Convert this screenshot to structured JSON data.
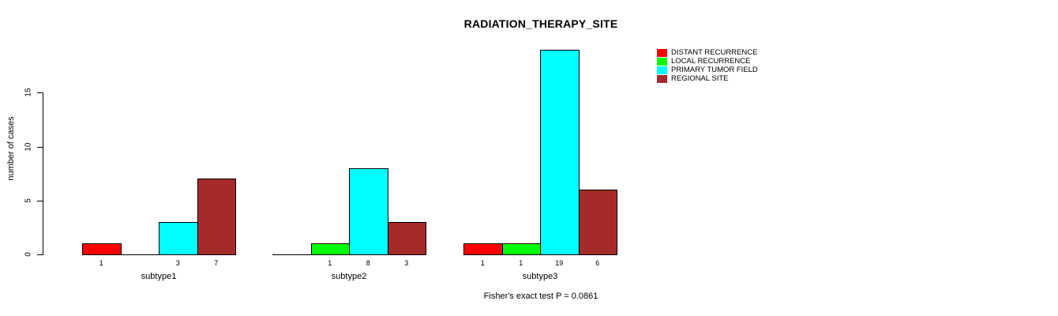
{
  "header": {
    "title": "RADIATION_THERAPY_SITE"
  },
  "footer": {
    "annotation": "Fisher's exact test P = 0.0861"
  },
  "chart_data": {
    "type": "bar",
    "title": "RADIATION_THERAPY_SITE",
    "xlabel": "",
    "ylabel": "number of cases",
    "categories": [
      "subtype1",
      "subtype2",
      "subtype3"
    ],
    "series": [
      {
        "name": "DISTANT RECURRENCE",
        "color": "#ff0000",
        "values": [
          1,
          0,
          1
        ]
      },
      {
        "name": "LOCAL RECURRENCE",
        "color": "#00ff00",
        "values": [
          0,
          1,
          1
        ]
      },
      {
        "name": "PRIMARY TUMOR FIELD",
        "color": "#00ffff",
        "values": [
          3,
          8,
          19
        ]
      },
      {
        "name": "REGIONAL SITE",
        "color": "#a52a2a",
        "values": [
          7,
          3,
          6
        ]
      }
    ],
    "bar_value_labels_shown_for_nonzero_only": true,
    "yticks": [
      0,
      5,
      10,
      15
    ],
    "ylim": [
      0,
      19
    ],
    "grid": false,
    "legend_position": "right",
    "annotation": "Fisher's exact test P = 0.0861"
  },
  "legend": {
    "items": [
      {
        "label": "DISTANT RECURRENCE",
        "color": "#ff0000"
      },
      {
        "label": "LOCAL RECURRENCE",
        "color": "#00ff00"
      },
      {
        "label": "PRIMARY TUMOR FIELD",
        "color": "#00ffff"
      },
      {
        "label": "REGIONAL SITE",
        "color": "#a52a2a"
      }
    ]
  },
  "colors": {
    "background": "#ffffff",
    "axis": "#000000",
    "text": "#000000"
  }
}
